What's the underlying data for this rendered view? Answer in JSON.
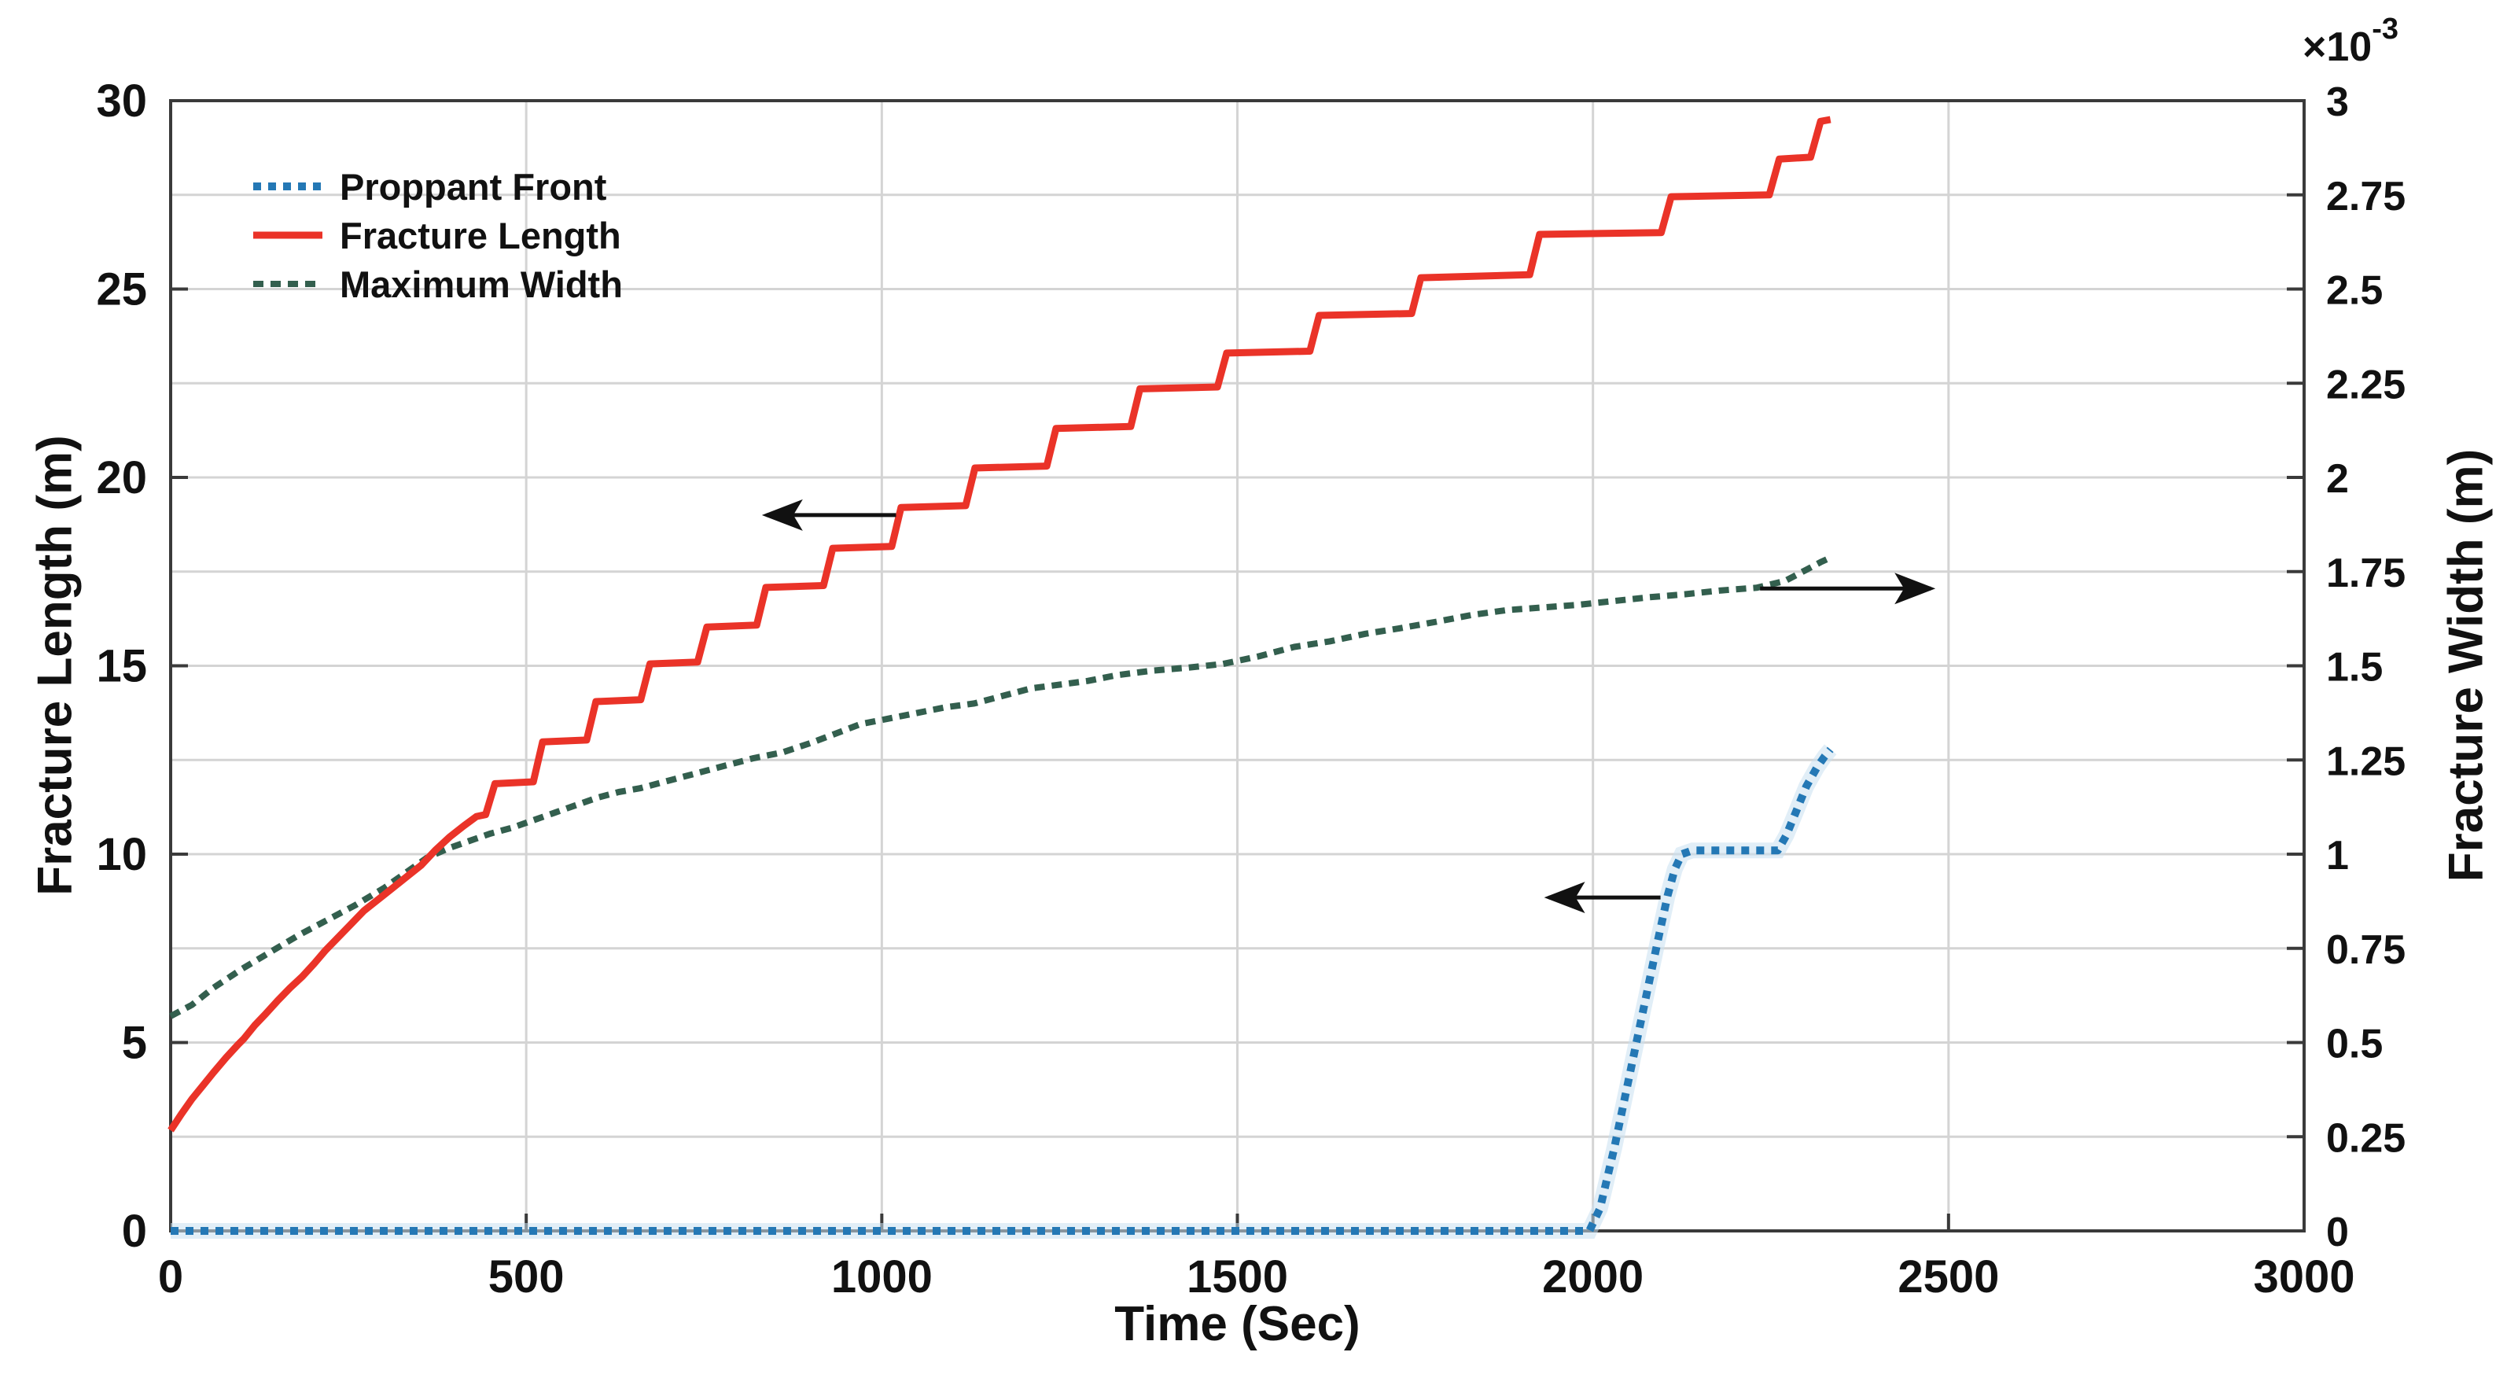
{
  "figure": {
    "background": "#ffffff",
    "axis_color": "#3a3a3a",
    "grid_color": "#d4d4d4",
    "text_color": "#111111"
  },
  "chart_data": {
    "type": "line",
    "title": "",
    "xlabel": "Time (Sec)",
    "ylabel_left": "Fracture Length (m)",
    "ylabel_right": "Fracture Width (m)",
    "grid": "on",
    "legend_position": "top-left-inside",
    "x_axis": {
      "min": 0,
      "max": 3000,
      "ticks": [
        0,
        500,
        1000,
        1500,
        2000,
        2500,
        3000
      ],
      "tick_labels": [
        "0",
        "500",
        "1000",
        "1500",
        "2000",
        "2500",
        "3000"
      ]
    },
    "left_axis": {
      "min": 0,
      "max": 30,
      "ticks": [
        0,
        5,
        10,
        15,
        20,
        25,
        30
      ],
      "tick_labels": [
        "0",
        "5",
        "10",
        "15",
        "20",
        "25",
        "30"
      ]
    },
    "right_axis": {
      "min": 0,
      "max": 3,
      "ticks": [
        0,
        0.25,
        0.5,
        0.75,
        1,
        1.25,
        1.5,
        1.75,
        2,
        2.25,
        2.5,
        2.75,
        3
      ],
      "tick_labels": [
        "0",
        "0.25",
        "0.5",
        "0.75",
        "1",
        "1.25",
        "1.5",
        "1.75",
        "2",
        "2.25",
        "2.5",
        "2.75",
        "3"
      ],
      "exponent_base": "×10",
      "exponent_power": "-3",
      "units_scale": "1e-3 m"
    },
    "series": [
      {
        "name": "Proppant Front",
        "axis": "left",
        "color": "#2478b5",
        "halo": "#c9e0f0",
        "line_style": "dotted",
        "width": 10,
        "points": [
          [
            0,
            0
          ],
          [
            1995,
            0
          ],
          [
            2010,
            0.6
          ],
          [
            2030,
            2.2
          ],
          [
            2050,
            4.0
          ],
          [
            2070,
            5.8
          ],
          [
            2090,
            7.6
          ],
          [
            2105,
            8.9
          ],
          [
            2115,
            9.6
          ],
          [
            2125,
            10.0
          ],
          [
            2140,
            10.1
          ],
          [
            2260,
            10.1
          ],
          [
            2272,
            10.5
          ],
          [
            2285,
            11.1
          ],
          [
            2300,
            11.8
          ],
          [
            2315,
            12.3
          ],
          [
            2326,
            12.6
          ],
          [
            2334,
            12.78
          ]
        ]
      },
      {
        "name": "Fracture Length",
        "axis": "left",
        "color": "#ea3328",
        "halo": null,
        "line_style": "solid",
        "width": 9,
        "points": [
          [
            0,
            2.67
          ],
          [
            15,
            3.1
          ],
          [
            30,
            3.5
          ],
          [
            45,
            3.85
          ],
          [
            60,
            4.2
          ],
          [
            78,
            4.6
          ],
          [
            95,
            4.95
          ],
          [
            103,
            5.1
          ],
          [
            118,
            5.45
          ],
          [
            133,
            5.75
          ],
          [
            150,
            6.1
          ],
          [
            168,
            6.45
          ],
          [
            185,
            6.75
          ],
          [
            202,
            7.1
          ],
          [
            218,
            7.45
          ],
          [
            236,
            7.8
          ],
          [
            254,
            8.15
          ],
          [
            272,
            8.5
          ],
          [
            292,
            8.8
          ],
          [
            312,
            9.1
          ],
          [
            332,
            9.4
          ],
          [
            352,
            9.7
          ],
          [
            372,
            10.1
          ],
          [
            392,
            10.45
          ],
          [
            412,
            10.75
          ],
          [
            430,
            11.0
          ],
          [
            443,
            11.05
          ],
          [
            456,
            11.87
          ],
          [
            510,
            11.92
          ],
          [
            523,
            12.98
          ],
          [
            585,
            13.03
          ],
          [
            598,
            14.05
          ],
          [
            661,
            14.1
          ],
          [
            674,
            15.05
          ],
          [
            741,
            15.1
          ],
          [
            754,
            16.03
          ],
          [
            824,
            16.08
          ],
          [
            837,
            17.08
          ],
          [
            918,
            17.13
          ],
          [
            931,
            18.12
          ],
          [
            1014,
            18.17
          ],
          [
            1027,
            19.2
          ],
          [
            1118,
            19.25
          ],
          [
            1131,
            20.25
          ],
          [
            1232,
            20.3
          ],
          [
            1245,
            21.3
          ],
          [
            1350,
            21.35
          ],
          [
            1363,
            22.35
          ],
          [
            1472,
            22.4
          ],
          [
            1485,
            23.3
          ],
          [
            1602,
            23.35
          ],
          [
            1615,
            24.3
          ],
          [
            1745,
            24.35
          ],
          [
            1758,
            25.3
          ],
          [
            1911,
            25.38
          ],
          [
            1925,
            26.45
          ],
          [
            2096,
            26.5
          ],
          [
            2110,
            27.45
          ],
          [
            2248,
            27.5
          ],
          [
            2262,
            28.45
          ],
          [
            2306,
            28.5
          ],
          [
            2320,
            29.45
          ],
          [
            2334,
            29.5
          ]
        ]
      },
      {
        "name": "Maximum Width",
        "axis": "right",
        "color": "#335f4e",
        "halo": null,
        "line_style": "dashed",
        "width": 8,
        "points": [
          [
            0,
            0.57
          ],
          [
            30,
            0.6
          ],
          [
            60,
            0.645
          ],
          [
            100,
            0.695
          ],
          [
            140,
            0.74
          ],
          [
            180,
            0.785
          ],
          [
            220,
            0.825
          ],
          [
            260,
            0.865
          ],
          [
            300,
            0.91
          ],
          [
            330,
            0.95
          ],
          [
            360,
            0.99
          ],
          [
            390,
            1.015
          ],
          [
            420,
            1.035
          ],
          [
            450,
            1.055
          ],
          [
            480,
            1.07
          ],
          [
            510,
            1.09
          ],
          [
            540,
            1.11
          ],
          [
            570,
            1.13
          ],
          [
            600,
            1.15
          ],
          [
            630,
            1.165
          ],
          [
            660,
            1.175
          ],
          [
            700,
            1.195
          ],
          [
            740,
            1.215
          ],
          [
            780,
            1.235
          ],
          [
            820,
            1.255
          ],
          [
            860,
            1.27
          ],
          [
            900,
            1.295
          ],
          [
            935,
            1.32
          ],
          [
            970,
            1.345
          ],
          [
            1010,
            1.36
          ],
          [
            1050,
            1.375
          ],
          [
            1090,
            1.39
          ],
          [
            1130,
            1.4
          ],
          [
            1170,
            1.42
          ],
          [
            1210,
            1.44
          ],
          [
            1250,
            1.45
          ],
          [
            1290,
            1.46
          ],
          [
            1330,
            1.475
          ],
          [
            1380,
            1.487
          ],
          [
            1430,
            1.495
          ],
          [
            1480,
            1.505
          ],
          [
            1530,
            1.525
          ],
          [
            1580,
            1.55
          ],
          [
            1630,
            1.565
          ],
          [
            1680,
            1.585
          ],
          [
            1730,
            1.6
          ],
          [
            1780,
            1.617
          ],
          [
            1830,
            1.635
          ],
          [
            1880,
            1.648
          ],
          [
            1930,
            1.655
          ],
          [
            1980,
            1.662
          ],
          [
            2030,
            1.672
          ],
          [
            2080,
            1.682
          ],
          [
            2130,
            1.69
          ],
          [
            2180,
            1.7
          ],
          [
            2230,
            1.707
          ],
          [
            2270,
            1.725
          ],
          [
            2300,
            1.755
          ],
          [
            2320,
            1.775
          ],
          [
            2334,
            1.787
          ]
        ]
      }
    ],
    "annotations": [
      {
        "type": "arrow",
        "axis": "left",
        "from": [
          1020,
          19.0
        ],
        "to": [
          838,
          19.0
        ]
      },
      {
        "type": "arrow",
        "axis": "left",
        "from": [
          2235,
          17.05
        ],
        "to": [
          2475,
          17.05
        ]
      },
      {
        "type": "arrow",
        "axis": "left",
        "from": [
          2095,
          8.85
        ],
        "to": [
          1938,
          8.85
        ]
      }
    ]
  }
}
